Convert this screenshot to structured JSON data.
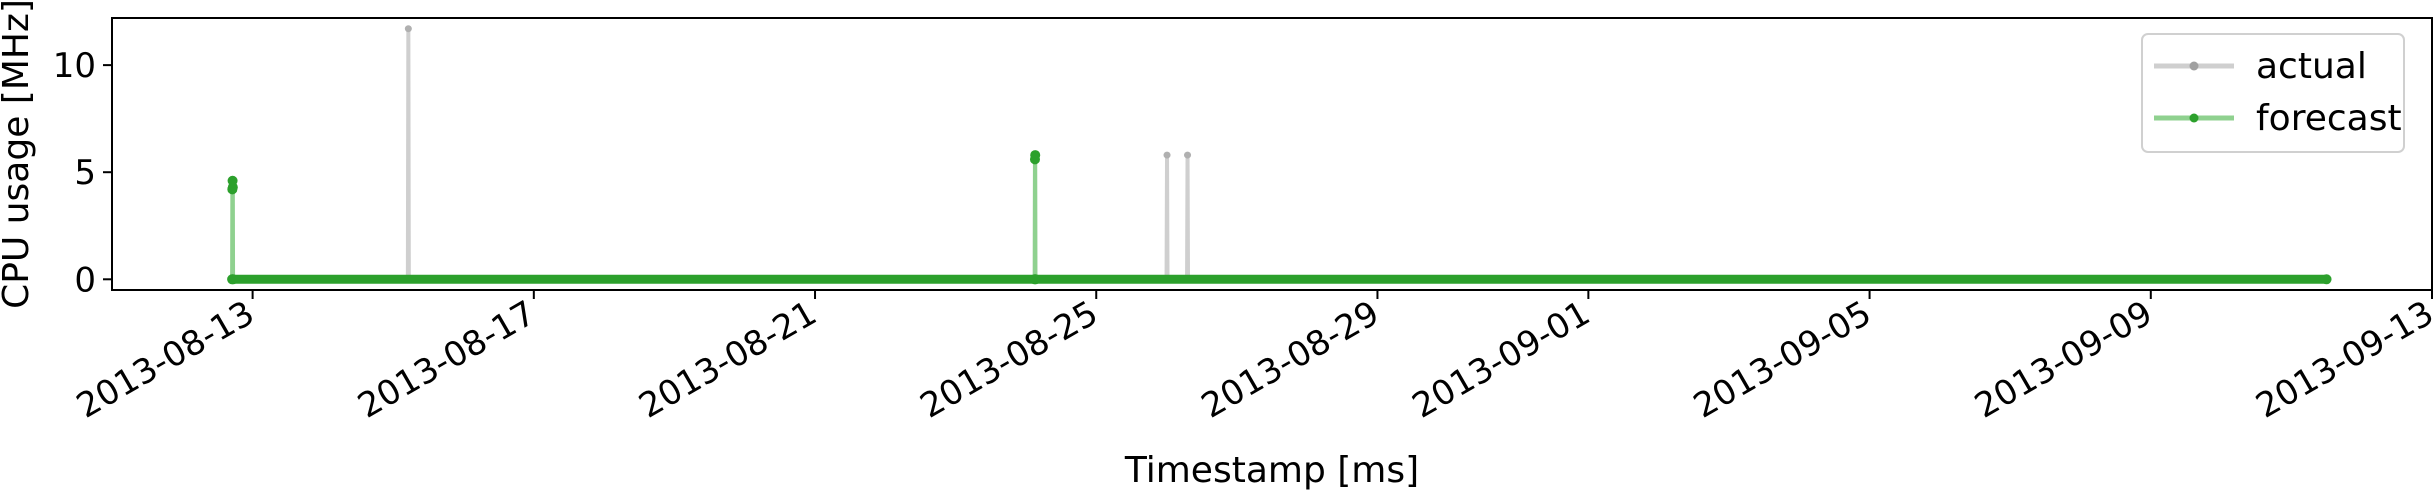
{
  "chart_data": {
    "type": "line",
    "title": "",
    "xlabel": "Timestamp [ms]",
    "ylabel": "CPU usage [MHz]",
    "x_type": "date",
    "xlim": [
      "2013-08-11",
      "2013-09-13"
    ],
    "ylim": [
      -0.5,
      12.2
    ],
    "x_ticks": [
      "2013-08-13",
      "2013-08-17",
      "2013-08-21",
      "2013-08-25",
      "2013-08-29",
      "2013-09-01",
      "2013-09-05",
      "2013-09-09",
      "2013-09-13"
    ],
    "y_ticks": [
      0,
      5,
      10
    ],
    "grid": false,
    "legend": {
      "position": "top-right",
      "entries": [
        "actual",
        "forecast"
      ]
    },
    "series": [
      {
        "name": "actual",
        "color": "#cccccc",
        "points": [
          [
            "2013-08-12 17:00",
            0
          ],
          [
            "2013-08-15 05:00",
            0
          ],
          [
            "2013-08-15 05:10",
            11.7
          ],
          [
            "2013-08-15 05:20",
            0
          ],
          [
            "2013-08-24 03:00",
            0
          ],
          [
            "2013-08-24 03:05",
            5.8
          ],
          [
            "2013-08-24 03:10",
            0
          ],
          [
            "2013-08-26 00:00",
            0
          ],
          [
            "2013-08-26 00:10",
            5.8
          ],
          [
            "2013-08-26 00:20",
            0
          ],
          [
            "2013-08-26 07:00",
            0
          ],
          [
            "2013-08-26 07:10",
            5.8
          ],
          [
            "2013-08-26 07:20",
            0
          ],
          [
            "2013-09-11 12:00",
            0
          ]
        ]
      },
      {
        "name": "forecast",
        "color": "#2ca02c",
        "points": [
          [
            "2013-08-12 17:00",
            0
          ],
          [
            "2013-08-12 17:05",
            4.2
          ],
          [
            "2013-08-12 17:10",
            4.6
          ],
          [
            "2013-08-12 17:15",
            4.3
          ],
          [
            "2013-08-12 17:20",
            0
          ],
          [
            "2013-08-24 03:00",
            0
          ],
          [
            "2013-08-24 03:05",
            5.6
          ],
          [
            "2013-08-24 03:10",
            5.8
          ],
          [
            "2013-08-24 03:15",
            0
          ],
          [
            "2013-09-11 12:00",
            0
          ]
        ]
      }
    ]
  }
}
